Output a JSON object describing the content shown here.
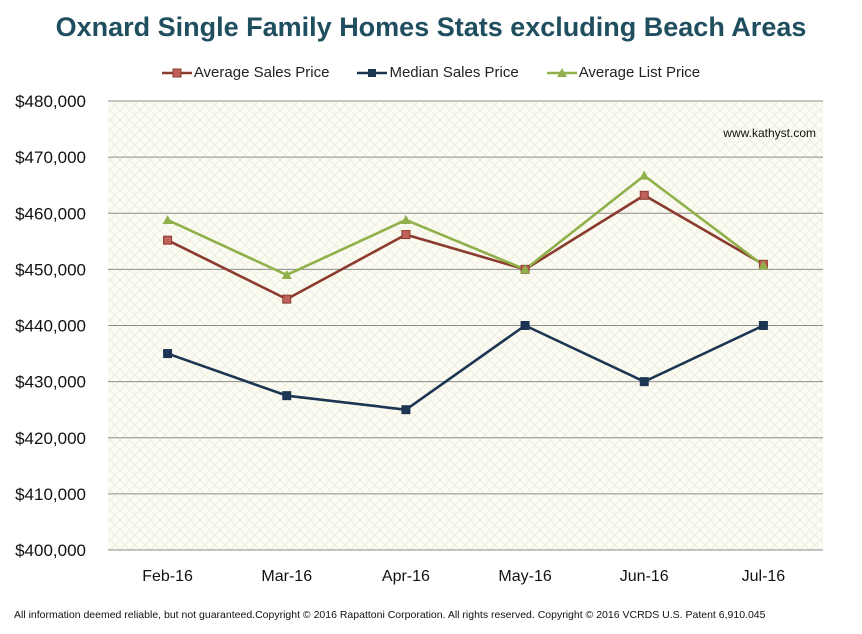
{
  "chart_data": {
    "type": "line",
    "title": "Oxnard Single Family Homes Stats excluding Beach Areas",
    "categories": [
      "Feb-16",
      "Mar-16",
      "Apr-16",
      "May-16",
      "Jun-16",
      "Jul-16"
    ],
    "series": [
      {
        "name": "Average Sales Price",
        "values": [
          455200,
          444700,
          456200,
          450000,
          463200,
          450900
        ],
        "color": "#8b3a2e",
        "marker": "square",
        "marker_color": "#c0605a"
      },
      {
        "name": "Median Sales Price",
        "values": [
          435000,
          427500,
          425000,
          440000,
          430000,
          440000
        ],
        "color": "#1c3553",
        "marker": "square",
        "marker_color": "#1c3553"
      },
      {
        "name": "Average List Price",
        "values": [
          458800,
          449000,
          458800,
          450000,
          466700,
          450700
        ],
        "color": "#8fb04a",
        "marker": "triangle",
        "marker_color": "#8fb04a"
      }
    ],
    "ylim": [
      400000,
      480000
    ],
    "ytick_step": 10000,
    "ytick_labels": [
      "$400,000",
      "$410,000",
      "$420,000",
      "$430,000",
      "$440,000",
      "$450,000",
      "$460,000",
      "$470,000",
      "$480,000"
    ],
    "xlabel": "",
    "ylabel": "",
    "grid": true,
    "legend_position": "top-center",
    "annotation": "www.kathyst.com"
  },
  "footer": "All information deemed reliable, but not guaranteed.Copyright © 2016 Rapattoni Corporation. All rights reserved. Copyright © 2016 VCRDS U.S. Patent 6,910.045"
}
